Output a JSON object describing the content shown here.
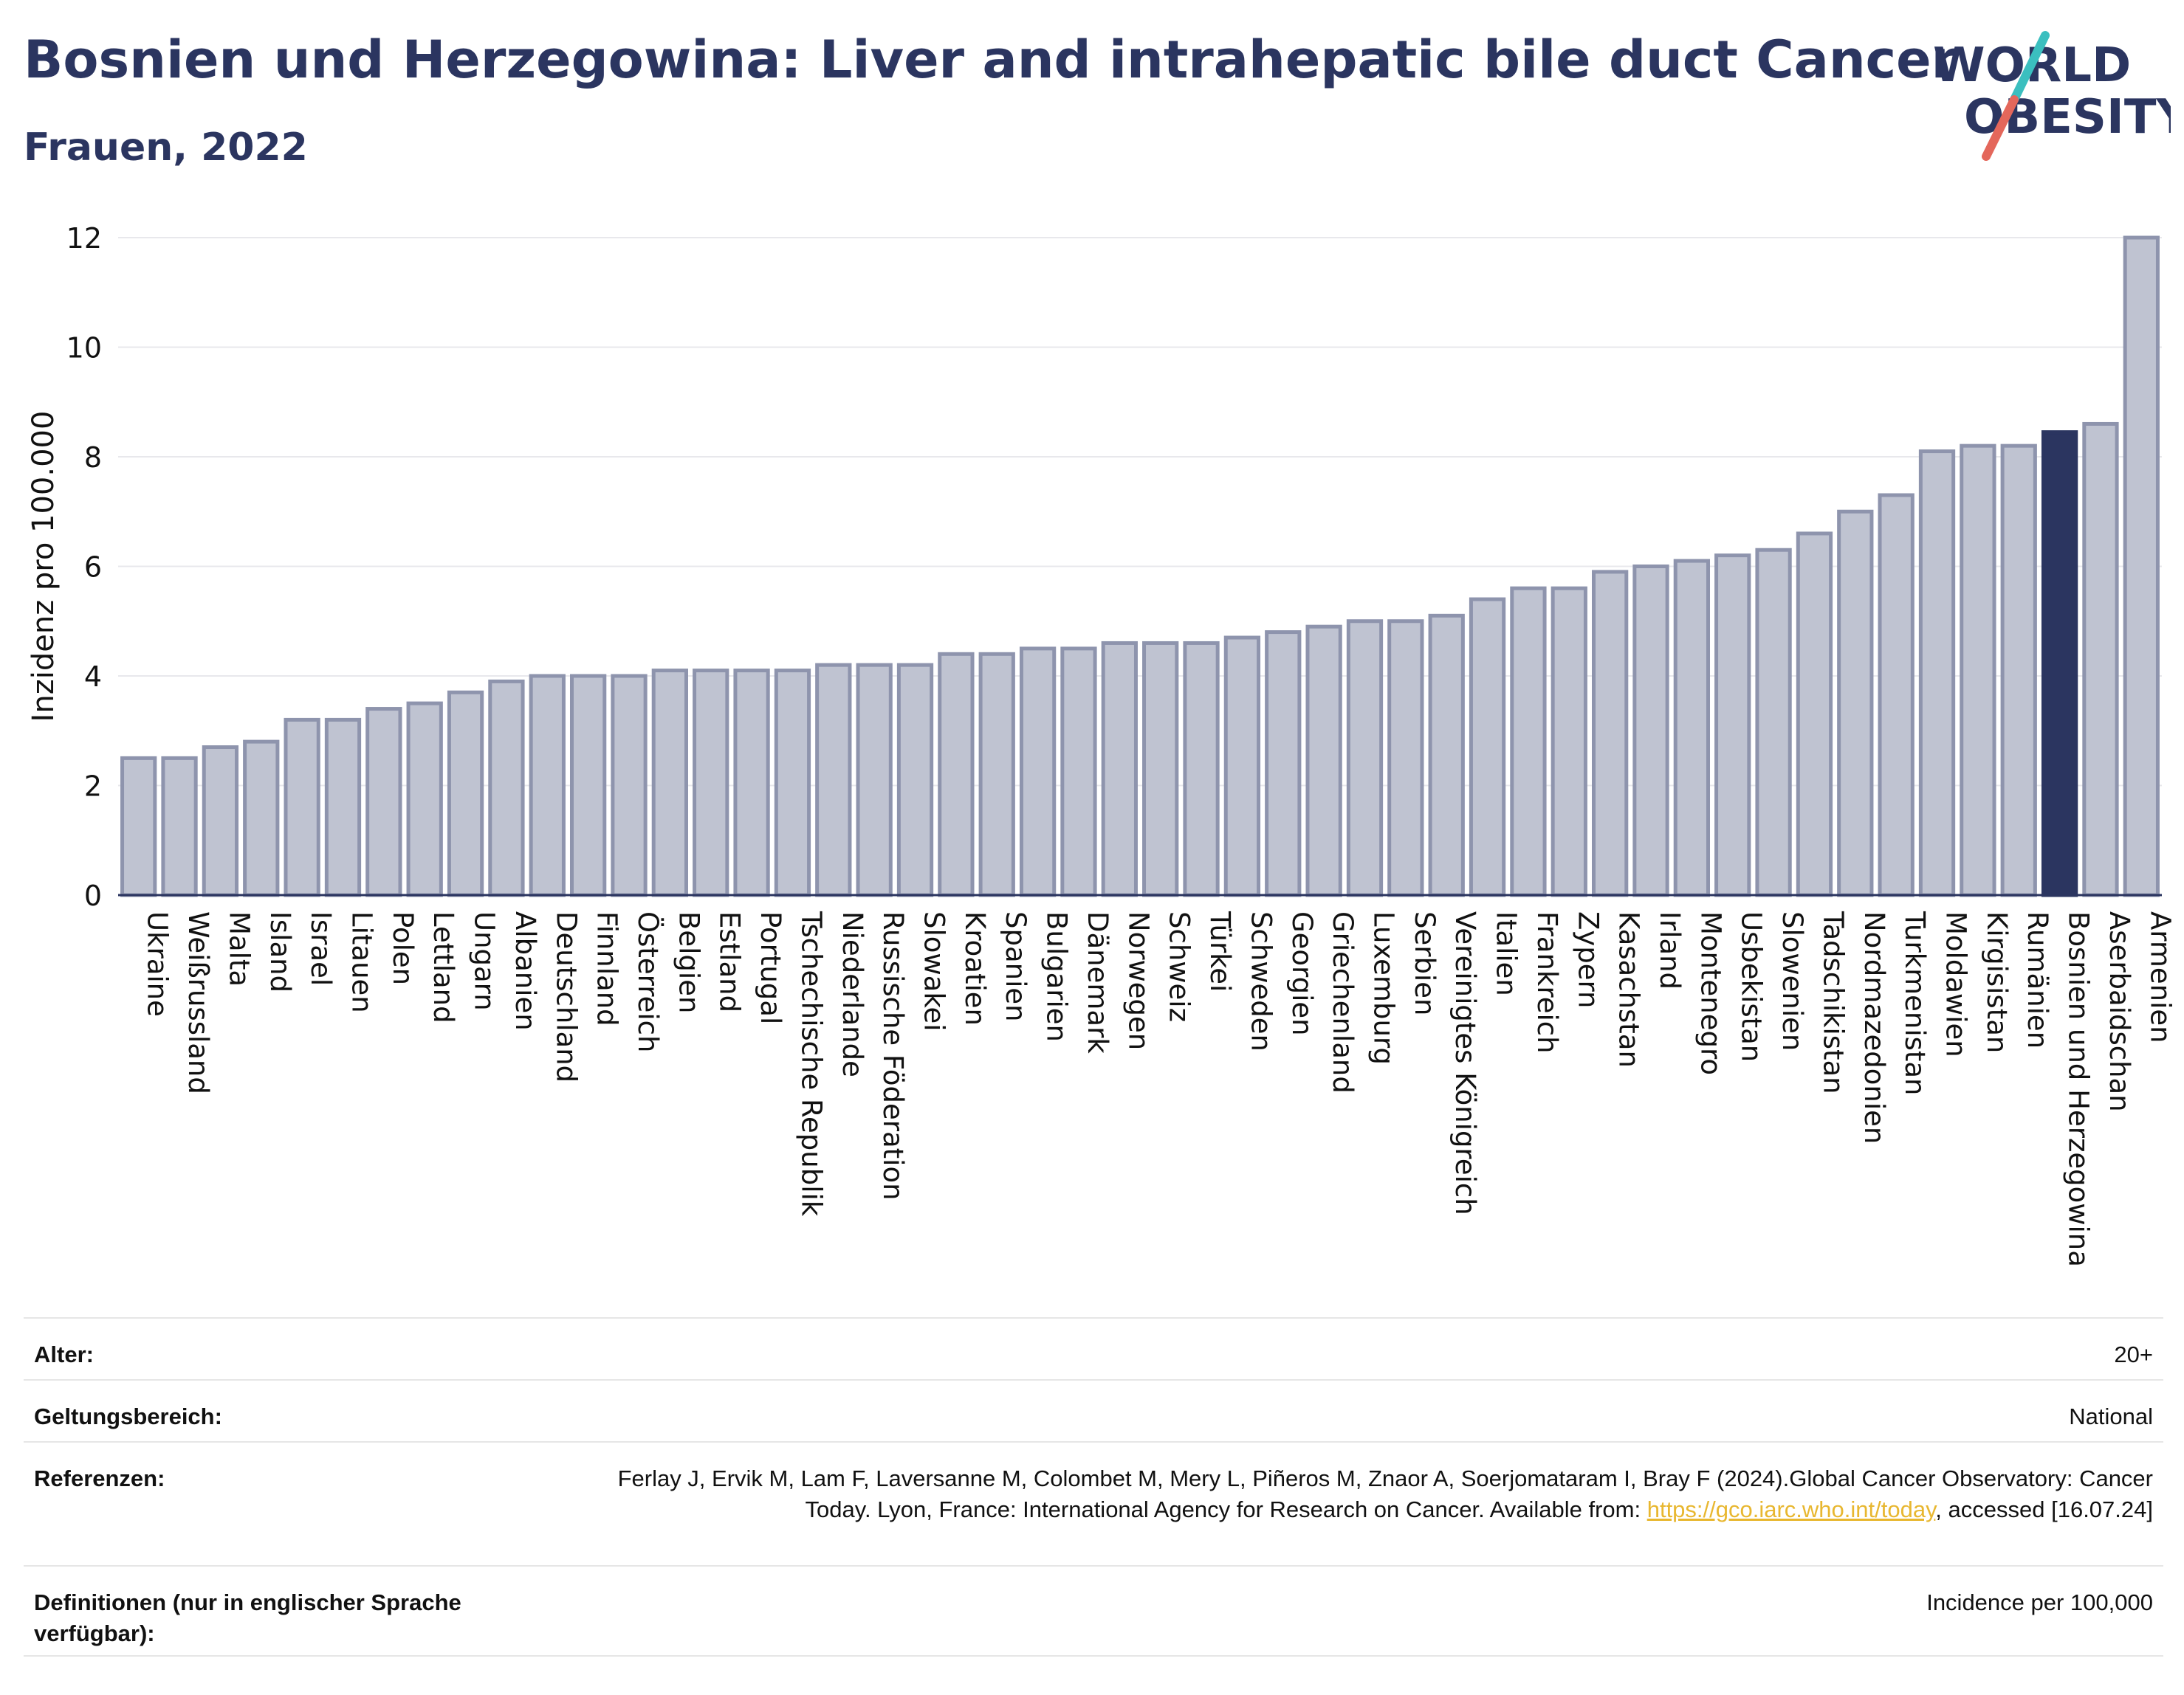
{
  "header": {
    "title": "Bosnien und Herzegowina: Liver and intrahepatic bile duct Cancer",
    "subtitle": "Frauen, 2022"
  },
  "logo": {
    "line1": "WORLD",
    "line2": "OBESITY"
  },
  "colors": {
    "bar": "#bfc3d1",
    "bar_stroke": "#8e94ad",
    "highlight": "#2b3560",
    "grid": "#e8e8ec",
    "axis": "#2b3560",
    "link": "#e8b730",
    "logo_teal": "#3bbfbf",
    "logo_red": "#e4675b"
  },
  "chart_data": {
    "type": "bar",
    "ylabel": "Inzidenz pro 100.000",
    "ylim": [
      0,
      12
    ],
    "yticks": [
      0,
      2,
      4,
      6,
      8,
      10,
      12
    ],
    "grid": true,
    "highlight": "Bosnien und Herzegowina",
    "categories": [
      "Ukraine",
      "Weißrussland",
      "Malta",
      "Island",
      "Israel",
      "Litauen",
      "Polen",
      "Lettland",
      "Ungarn",
      "Albanien",
      "Deutschland",
      "Finnland",
      "Österreich",
      "Belgien",
      "Estland",
      "Portugal",
      "Tschechische Republik",
      "Niederlande",
      "Russische Föderation",
      "Slowakei",
      "Kroatien",
      "Spanien",
      "Bulgarien",
      "Dänemark",
      "Norwegen",
      "Schweiz",
      "Türkei",
      "Schweden",
      "Georgien",
      "Griechenland",
      "Luxemburg",
      "Serbien",
      "Vereinigtes Königreich",
      "Italien",
      "Frankreich",
      "Zypern",
      "Kasachstan",
      "Irland",
      "Montenegro",
      "Usbekistan",
      "Slowenien",
      "Tadschikistan",
      "Nordmazedonien",
      "Turkmenistan",
      "Moldawien",
      "Kirgisistan",
      "Rumänien",
      "Bosnien und Herzegowina",
      "Aserbaidschan",
      "Armenien"
    ],
    "values": [
      2.5,
      2.5,
      2.7,
      2.8,
      3.2,
      3.2,
      3.4,
      3.5,
      3.7,
      3.9,
      4.0,
      4.0,
      4.0,
      4.1,
      4.1,
      4.1,
      4.1,
      4.2,
      4.2,
      4.2,
      4.4,
      4.4,
      4.5,
      4.5,
      4.6,
      4.6,
      4.6,
      4.7,
      4.8,
      4.9,
      5.0,
      5.0,
      5.1,
      5.4,
      5.6,
      5.6,
      5.9,
      6.0,
      6.1,
      6.2,
      6.3,
      6.6,
      7.0,
      7.3,
      8.1,
      8.2,
      8.2,
      8.45,
      8.6,
      12.0
    ]
  },
  "info": {
    "age_label": "Alter:",
    "age_value": "20+",
    "scope_label": "Geltungsbereich:",
    "scope_value": "National",
    "ref_label": "Referenzen:",
    "ref_text1": "Ferlay J, Ervik M, Lam F, Laversanne M, Colombet M, Mery L, Piñeros M, Znaor A, Soerjomataram I, Bray F (2024).Global Cancer Observatory: Cancer Today. Lyon, France: International Agency for Research on Cancer. Available from: ",
    "ref_link": "https://gco.iarc.who.int/today",
    "ref_text2": ", accessed [16.07.24]",
    "def_label": "Definitionen (nur in englischer Sprache verfügbar):",
    "def_value": "Incidence per 100,000"
  }
}
